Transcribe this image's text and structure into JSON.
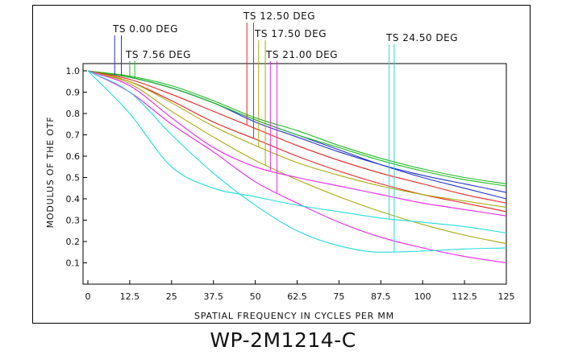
{
  "caption": "WP-2M1214-C",
  "chart_data": {
    "type": "line",
    "xlabel": "SPATIAL FREQUENCY IN CYCLES PER MM",
    "ylabel": "MODULUS OF THE OTF",
    "xlim": [
      0,
      125
    ],
    "ylim": [
      0,
      1.0
    ],
    "x_ticks": [
      "0",
      "12.5",
      "25",
      "37.5",
      "50",
      "62.5",
      "75",
      "87.5",
      "100",
      "112.5",
      "125"
    ],
    "y_ticks": [
      "0.1",
      "0.2",
      "0.3",
      "0.4",
      "0.5",
      "0.6",
      "0.7",
      "0.8",
      "0.9",
      "1.0"
    ],
    "grid": false,
    "x": [
      0,
      12.5,
      25,
      37.5,
      50,
      62.5,
      75,
      87.5,
      100,
      112.5,
      125
    ],
    "field_labels": [
      {
        "text": "TS  0.00 DEG",
        "color": "#2233cc",
        "marker_x": [
          8,
          10
        ]
      },
      {
        "text": "TS  7.56 DEG",
        "color": "#22bb22",
        "marker_x": [
          12.5,
          14
        ]
      },
      {
        "text": "TS  12.50 DEG",
        "color": "#ee2222",
        "marker_x": [
          47.5,
          49.5
        ]
      },
      {
        "text": "TS  17.50 DEG",
        "color": "#aaaa11",
        "marker_x": [
          51,
          53
        ]
      },
      {
        "text": "TS  21.00 DEG",
        "color": "#ee22ee",
        "marker_x": [
          54.5,
          56.5
        ]
      },
      {
        "text": "TS  24.50 DEG",
        "color": "#22dddd",
        "marker_x": [
          90,
          91.5
        ]
      }
    ],
    "series": [
      {
        "color": "#2233cc",
        "values": [
          1.0,
          0.97,
          0.92,
          0.85,
          0.77,
          0.7,
          0.63,
          0.56,
          0.5,
          0.45,
          0.4
        ]
      },
      {
        "color": "#2233cc",
        "values": [
          1.0,
          0.97,
          0.92,
          0.85,
          0.76,
          0.69,
          0.62,
          0.56,
          0.51,
          0.47,
          0.43
        ]
      },
      {
        "color": "#22bb22",
        "values": [
          1.0,
          0.975,
          0.93,
          0.86,
          0.78,
          0.72,
          0.65,
          0.59,
          0.54,
          0.5,
          0.47
        ]
      },
      {
        "color": "#22bb22",
        "values": [
          1.0,
          0.97,
          0.92,
          0.85,
          0.77,
          0.7,
          0.64,
          0.58,
          0.53,
          0.49,
          0.46
        ]
      },
      {
        "color": "#ee2222",
        "values": [
          1.0,
          0.96,
          0.89,
          0.81,
          0.73,
          0.65,
          0.58,
          0.52,
          0.47,
          0.42,
          0.38
        ]
      },
      {
        "color": "#ee2222",
        "values": [
          1.0,
          0.95,
          0.86,
          0.76,
          0.68,
          0.6,
          0.53,
          0.47,
          0.42,
          0.38,
          0.34
        ]
      },
      {
        "color": "#aaaa11",
        "values": [
          1.0,
          0.95,
          0.85,
          0.74,
          0.65,
          0.57,
          0.51,
          0.46,
          0.42,
          0.39,
          0.36
        ]
      },
      {
        "color": "#aaaa11",
        "values": [
          1.0,
          0.94,
          0.81,
          0.69,
          0.58,
          0.49,
          0.41,
          0.34,
          0.28,
          0.23,
          0.19
        ]
      },
      {
        "color": "#ee22ee",
        "values": [
          1.0,
          0.93,
          0.78,
          0.64,
          0.55,
          0.5,
          0.46,
          0.42,
          0.38,
          0.35,
          0.32
        ]
      },
      {
        "color": "#ee22ee",
        "values": [
          1.0,
          0.9,
          0.75,
          0.62,
          0.48,
          0.38,
          0.29,
          0.22,
          0.17,
          0.13,
          0.1
        ]
      },
      {
        "color": "#22dddd",
        "values": [
          1.0,
          0.8,
          0.55,
          0.45,
          0.41,
          0.37,
          0.34,
          0.31,
          0.29,
          0.27,
          0.24
        ]
      },
      {
        "color": "#22dddd",
        "values": [
          1.0,
          0.9,
          0.7,
          0.52,
          0.37,
          0.25,
          0.18,
          0.15,
          0.155,
          0.165,
          0.17
        ]
      }
    ]
  }
}
